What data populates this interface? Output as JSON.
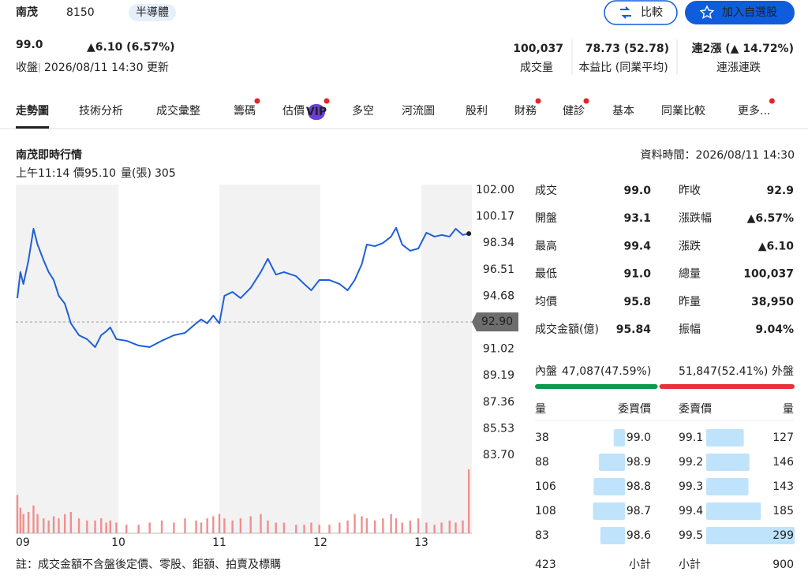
{
  "header": {
    "name": "南茂",
    "code": "8150",
    "industry": "半導體",
    "compare_button": "比較",
    "watchlist_button": "加入自選股"
  },
  "price": {
    "last": "99.0",
    "change": "▲6.10 (6.57%)",
    "status": "收盤",
    "updated": "2026/08/11 14:30 更新"
  },
  "stats": [
    {
      "value": "100,037",
      "label": "成交量",
      "color": "#222222"
    },
    {
      "value": "78.73 (52.78)",
      "label": "本益比 (同業平均)",
      "color": "#222222"
    },
    {
      "value": "連2漲 (▲ 14.72%)",
      "label": "連漲連跌",
      "color": "#e0242a"
    }
  ],
  "tabs": [
    {
      "label": "走勢圖",
      "active": true
    },
    {
      "label": "技術分析"
    },
    {
      "label": "成交彙整"
    },
    {
      "label": "籌碼",
      "dot": true
    },
    {
      "label": "估價",
      "badge": "VIP",
      "dot": true
    },
    {
      "label": "多空"
    },
    {
      "label": "河流圖"
    },
    {
      "label": "股利"
    },
    {
      "label": "財務",
      "dot": true
    },
    {
      "label": "健診",
      "dot": true
    },
    {
      "label": "基本"
    },
    {
      "label": "同業比較"
    },
    {
      "label": "更多...",
      "dot": true
    }
  ],
  "chart_data": {
    "type": "line",
    "title": "南茂即時行情",
    "data_time": "資料時間：2026/08/11 14:30",
    "hover": {
      "time": "上午11:14",
      "price_label": "價",
      "price": "95.10",
      "volume_label": "量(張)",
      "volume": "305"
    },
    "x": [
      9.0,
      9.03,
      9.06,
      9.11,
      9.16,
      9.2,
      9.26,
      9.31,
      9.36,
      9.41,
      9.47,
      9.53,
      9.61,
      9.69,
      9.77,
      9.83,
      9.88,
      9.92,
      9.98,
      10.08,
      10.2,
      10.31,
      10.43,
      10.55,
      10.66,
      10.77,
      10.82,
      10.88,
      10.94,
      11.0,
      11.05,
      11.13,
      11.21,
      11.31,
      11.41,
      11.48,
      11.56,
      11.64,
      11.76,
      11.84,
      11.91,
      11.99,
      12.09,
      12.19,
      12.27,
      12.34,
      12.41,
      12.46,
      12.54,
      12.62,
      12.7,
      12.75,
      12.81,
      12.89,
      12.97,
      13.05,
      13.13,
      13.2,
      13.28,
      13.34,
      13.41,
      13.47
    ],
    "series": [
      {
        "color": "#1f5fd6",
        "values": [
          94.54,
          96.34,
          95.52,
          97.15,
          99.33,
          98.24,
          97.15,
          96.34,
          95.79,
          94.7,
          94.16,
          92.8,
          91.98,
          91.71,
          91.16,
          91.98,
          92.25,
          92.52,
          91.71,
          91.6,
          91.27,
          91.16,
          91.6,
          91.98,
          92.14,
          92.8,
          93.07,
          92.8,
          93.34,
          92.8,
          94.7,
          94.97,
          94.54,
          95.25,
          96.34,
          97.26,
          96.17,
          96.34,
          96.06,
          95.52,
          95.08,
          95.79,
          95.79,
          95.52,
          95.08,
          95.79,
          96.88,
          98.24,
          98.13,
          98.35,
          98.79,
          99.4,
          98.24,
          97.81,
          97.97,
          99.06,
          98.79,
          98.9,
          98.79,
          99.33,
          98.9,
          99.0
        ]
      },
      {
        "type": "bar",
        "axis": "y2",
        "color": "#ef8f8f",
        "values": [
          1800,
          1200,
          900,
          1000,
          1300,
          900,
          700,
          600,
          800,
          700,
          900,
          1000,
          700,
          600,
          600,
          700,
          500,
          600,
          500,
          400,
          400,
          500,
          600,
          500,
          700,
          600,
          500,
          700,
          800,
          900,
          700,
          600,
          700,
          800,
          900,
          600,
          500,
          500,
          400,
          400,
          500,
          400,
          400,
          500,
          600,
          900,
          800,
          700,
          600,
          700,
          900,
          700,
          500,
          600,
          700,
          500,
          400,
          500,
          600,
          500,
          600,
          3000
        ]
      }
    ],
    "xlim": [
      9,
      13.5
    ],
    "xticks": [
      {
        "value": 9,
        "label": "09"
      },
      10,
      11,
      12,
      13
    ],
    "ylim": [
      83.7,
      102
    ],
    "yticks": [
      {
        "value": 102,
        "label": "102.00"
      },
      100.17,
      98.34,
      96.51,
      94.68,
      91.02,
      89.19,
      87.36,
      85.53,
      {
        "value": 83.7,
        "label": "83.70"
      }
    ],
    "y2lim": [
      0,
      3000
    ],
    "reference_line": {
      "value": 92.9,
      "label": "92.90"
    }
  },
  "quote": {
    "rows": [
      [
        {
          "label": "成交",
          "value": "99.0",
          "color": "#e0242a"
        },
        {
          "label": "昨收",
          "value": "92.9",
          "color": "#222222"
        }
      ],
      [
        {
          "label": "開盤",
          "value": "93.1",
          "color": "#e0242a"
        },
        {
          "label": "漲跌幅",
          "value": "▲6.57%",
          "color": "#e0242a"
        }
      ],
      [
        {
          "label": "最高",
          "value": "99.4",
          "color": "#e0242a"
        },
        {
          "label": "漲跌",
          "value": "▲6.10",
          "color": "#e0242a"
        }
      ],
      [
        {
          "label": "最低",
          "value": "91.0",
          "color": "#0a9a4a"
        },
        {
          "label": "總量",
          "value": "100,037",
          "color": "#222222"
        }
      ],
      [
        {
          "label": "均價",
          "value": "95.8",
          "color": "#222222"
        },
        {
          "label": "昨量",
          "value": "38,950",
          "color": "#222222"
        }
      ],
      [
        {
          "label": "成交金額(億)",
          "value": "95.84",
          "color": "#222222"
        },
        {
          "label": "振幅",
          "value": "9.04%",
          "color": "#222222"
        }
      ]
    ]
  },
  "order_flow": {
    "inner_label": "內盤",
    "inner": "47,087(47.59%)",
    "outer": "51,847(52.41%)",
    "outer_label": "外盤",
    "ratio": [
      47.59,
      52.41
    ]
  },
  "order_book": {
    "headers": [
      "量",
      "委買價",
      "委賣價",
      "量"
    ],
    "rows": [
      [
        38,
        "99.0",
        "99.1",
        127
      ],
      [
        88,
        "98.9",
        "99.2",
        146
      ],
      [
        106,
        "98.8",
        "99.3",
        143
      ],
      [
        108,
        "98.7",
        "99.4",
        185
      ],
      [
        83,
        "98.6",
        "99.5",
        299
      ]
    ],
    "footer": [
      423,
      "小計",
      "小計",
      900
    ]
  },
  "footnote": "註：成交金額不含盤後定價、零股、鉅額、拍賣及標購"
}
